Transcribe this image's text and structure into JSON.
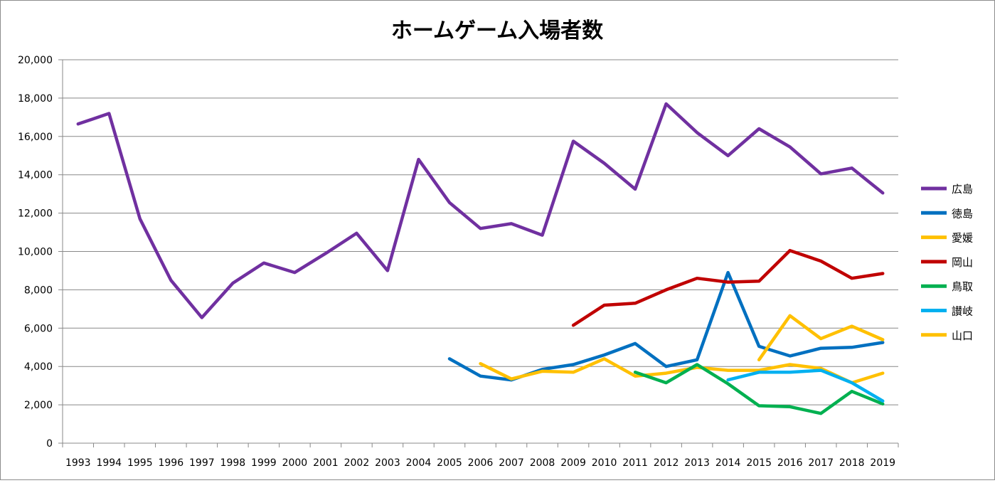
{
  "chart_data": {
    "type": "line",
    "title": "ホームゲーム入場者数",
    "xlabel": "",
    "ylabel": "",
    "ylim": [
      0,
      20000
    ],
    "y_ticks": [
      "0",
      "2,000",
      "4,000",
      "6,000",
      "8,000",
      "10,000",
      "12,000",
      "14,000",
      "16,000",
      "18,000",
      "20,000"
    ],
    "grid": true,
    "legend_position": "right",
    "x": [
      1993,
      1994,
      1995,
      1996,
      1997,
      1998,
      1999,
      2000,
      2001,
      2002,
      2003,
      2004,
      2005,
      2006,
      2007,
      2008,
      2009,
      2010,
      2011,
      2012,
      2013,
      2014,
      2015,
      2016,
      2017,
      2018,
      2019
    ],
    "series": [
      {
        "name": "広島",
        "color": "#7030A0",
        "values": [
          16650,
          17200,
          11700,
          8500,
          6550,
          8350,
          9400,
          8900,
          9900,
          10950,
          9000,
          14800,
          12550,
          11200,
          11450,
          10850,
          15750,
          14600,
          13250,
          17700,
          16200,
          15000,
          16400,
          15450,
          14050,
          14350,
          13050
        ]
      },
      {
        "name": "徳島",
        "color": "#0070C0",
        "values": [
          null,
          null,
          null,
          null,
          null,
          null,
          null,
          null,
          null,
          null,
          null,
          null,
          4400,
          3500,
          3300,
          3850,
          4100,
          4600,
          5200,
          4000,
          4350,
          8900,
          5050,
          4550,
          4950,
          5000,
          5250
        ]
      },
      {
        "name": "愛媛",
        "color": "#FFC000",
        "values": [
          null,
          null,
          null,
          null,
          null,
          null,
          null,
          null,
          null,
          null,
          null,
          null,
          null,
          4150,
          3350,
          3750,
          3700,
          4400,
          3500,
          3650,
          3950,
          3800,
          3800,
          4100,
          3900,
          3150,
          3650
        ]
      },
      {
        "name": "岡山",
        "color": "#C00000",
        "values": [
          null,
          null,
          null,
          null,
          null,
          null,
          null,
          null,
          null,
          null,
          null,
          null,
          null,
          null,
          null,
          null,
          6150,
          7200,
          7300,
          8000,
          8600,
          8400,
          8450,
          10050,
          9500,
          8600,
          8850
        ]
      },
      {
        "name": "鳥取",
        "color": "#00B050",
        "values": [
          null,
          null,
          null,
          null,
          null,
          null,
          null,
          null,
          null,
          null,
          null,
          null,
          null,
          null,
          null,
          null,
          null,
          null,
          3700,
          3150,
          4100,
          3100,
          1950,
          1900,
          1550,
          2700,
          2050
        ]
      },
      {
        "name": "讃岐",
        "color": "#00B0F0",
        "values": [
          null,
          null,
          null,
          null,
          null,
          null,
          null,
          null,
          null,
          null,
          null,
          null,
          null,
          null,
          null,
          null,
          null,
          null,
          null,
          null,
          null,
          3300,
          3700,
          3700,
          3800,
          3150,
          2200
        ]
      },
      {
        "name": "山口",
        "color": "#FFC000",
        "values": [
          null,
          null,
          null,
          null,
          null,
          null,
          null,
          null,
          null,
          null,
          null,
          null,
          null,
          null,
          null,
          null,
          null,
          null,
          null,
          null,
          null,
          null,
          4350,
          6650,
          5450,
          6100,
          5400
        ]
      }
    ]
  }
}
